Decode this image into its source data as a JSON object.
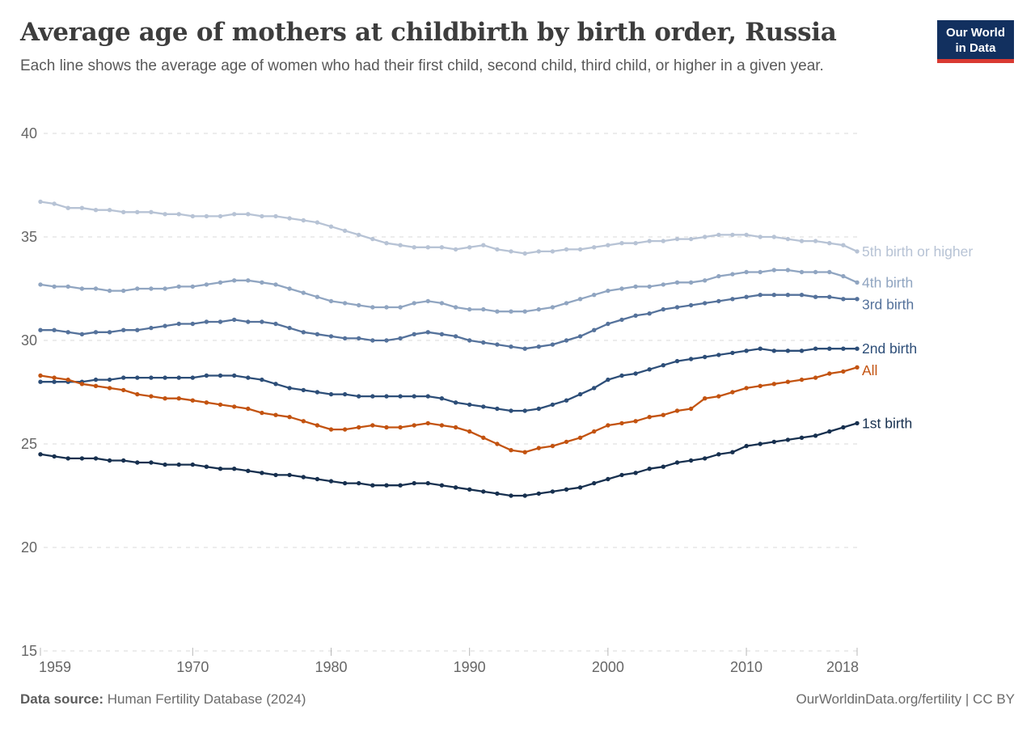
{
  "header": {
    "title": "Average age of mothers at childbirth by birth order, Russia",
    "subtitle": "Each line shows the average age of women who had their first child, second child, third child, or higher in a given year."
  },
  "logo": {
    "line1": "Our World",
    "line2": "in Data",
    "bg_color": "#12305f",
    "accent_color": "#d93a32"
  },
  "chart_data": {
    "type": "line",
    "title": "Average age of mothers at childbirth by birth order, Russia",
    "xlabel": "",
    "ylabel": "",
    "xlim": [
      1959,
      2018
    ],
    "ylim": [
      15,
      40
    ],
    "xticks": [
      1959,
      1970,
      1980,
      1990,
      2000,
      2010,
      2018
    ],
    "yticks": [
      15,
      20,
      25,
      30,
      35,
      40
    ],
    "grid": "horizontal-dashed",
    "grid_color": "#dadada",
    "tick_color": "#b8b8b8",
    "tick_label_color": "#666666",
    "legend_position": "right-end-labels",
    "x": [
      1959,
      1960,
      1961,
      1962,
      1963,
      1964,
      1965,
      1966,
      1967,
      1968,
      1969,
      1970,
      1971,
      1972,
      1973,
      1974,
      1975,
      1976,
      1977,
      1978,
      1979,
      1980,
      1981,
      1982,
      1983,
      1984,
      1985,
      1986,
      1987,
      1988,
      1989,
      1990,
      1991,
      1992,
      1993,
      1994,
      1995,
      1996,
      1997,
      1998,
      1999,
      2000,
      2001,
      2002,
      2003,
      2004,
      2005,
      2006,
      2007,
      2008,
      2009,
      2010,
      2011,
      2012,
      2013,
      2014,
      2015,
      2016,
      2017,
      2018
    ],
    "series": [
      {
        "name": "5th birth or higher",
        "color": "#b7c3d5",
        "values": [
          36.7,
          36.6,
          36.4,
          36.4,
          36.3,
          36.3,
          36.2,
          36.2,
          36.2,
          36.1,
          36.1,
          36.0,
          36.0,
          36.0,
          36.1,
          36.1,
          36.0,
          36.0,
          35.9,
          35.8,
          35.7,
          35.5,
          35.3,
          35.1,
          34.9,
          34.7,
          34.6,
          34.5,
          34.5,
          34.5,
          34.4,
          34.5,
          34.6,
          34.4,
          34.3,
          34.2,
          34.3,
          34.3,
          34.4,
          34.4,
          34.5,
          34.6,
          34.7,
          34.7,
          34.8,
          34.8,
          34.9,
          34.9,
          35.0,
          35.1,
          35.1,
          35.1,
          35.0,
          35.0,
          34.9,
          34.8,
          34.8,
          34.7,
          34.6,
          34.3
        ]
      },
      {
        "name": "4th birth",
        "color": "#90a5c1",
        "values": [
          32.7,
          32.6,
          32.6,
          32.5,
          32.5,
          32.4,
          32.4,
          32.5,
          32.5,
          32.5,
          32.6,
          32.6,
          32.7,
          32.8,
          32.9,
          32.9,
          32.8,
          32.7,
          32.5,
          32.3,
          32.1,
          31.9,
          31.8,
          31.7,
          31.6,
          31.6,
          31.6,
          31.8,
          31.9,
          31.8,
          31.6,
          31.5,
          31.5,
          31.4,
          31.4,
          31.4,
          31.5,
          31.6,
          31.8,
          32.0,
          32.2,
          32.4,
          32.5,
          32.6,
          32.6,
          32.7,
          32.8,
          32.8,
          32.9,
          33.1,
          33.2,
          33.3,
          33.3,
          33.4,
          33.4,
          33.3,
          33.3,
          33.3,
          33.1,
          32.8
        ]
      },
      {
        "name": "3rd birth",
        "color": "#55729b",
        "values": [
          30.5,
          30.5,
          30.4,
          30.3,
          30.4,
          30.4,
          30.5,
          30.5,
          30.6,
          30.7,
          30.8,
          30.8,
          30.9,
          30.9,
          31.0,
          30.9,
          30.9,
          30.8,
          30.6,
          30.4,
          30.3,
          30.2,
          30.1,
          30.1,
          30.0,
          30.0,
          30.1,
          30.3,
          30.4,
          30.3,
          30.2,
          30.0,
          29.9,
          29.8,
          29.7,
          29.6,
          29.7,
          29.8,
          30.0,
          30.2,
          30.5,
          30.8,
          31.0,
          31.2,
          31.3,
          31.5,
          31.6,
          31.7,
          31.8,
          31.9,
          32.0,
          32.1,
          32.2,
          32.2,
          32.2,
          32.2,
          32.1,
          32.1,
          32.0,
          32.0
        ]
      },
      {
        "name": "2nd birth",
        "color": "#2d4e78",
        "values": [
          28.0,
          28.0,
          28.0,
          28.0,
          28.1,
          28.1,
          28.2,
          28.2,
          28.2,
          28.2,
          28.2,
          28.2,
          28.3,
          28.3,
          28.3,
          28.2,
          28.1,
          27.9,
          27.7,
          27.6,
          27.5,
          27.4,
          27.4,
          27.3,
          27.3,
          27.3,
          27.3,
          27.3,
          27.3,
          27.2,
          27.0,
          26.9,
          26.8,
          26.7,
          26.6,
          26.6,
          26.7,
          26.9,
          27.1,
          27.4,
          27.7,
          28.1,
          28.3,
          28.4,
          28.6,
          28.8,
          29.0,
          29.1,
          29.2,
          29.3,
          29.4,
          29.5,
          29.6,
          29.5,
          29.5,
          29.5,
          29.6,
          29.6,
          29.6,
          29.6
        ]
      },
      {
        "name": "All",
        "color": "#c35310",
        "values": [
          28.3,
          28.2,
          28.1,
          27.9,
          27.8,
          27.7,
          27.6,
          27.4,
          27.3,
          27.2,
          27.2,
          27.1,
          27.0,
          26.9,
          26.8,
          26.7,
          26.5,
          26.4,
          26.3,
          26.1,
          25.9,
          25.7,
          25.7,
          25.8,
          25.9,
          25.8,
          25.8,
          25.9,
          26.0,
          25.9,
          25.8,
          25.6,
          25.3,
          25.0,
          24.7,
          24.6,
          24.8,
          24.9,
          25.1,
          25.3,
          25.6,
          25.9,
          26.0,
          26.1,
          26.3,
          26.4,
          26.6,
          26.7,
          27.2,
          27.3,
          27.5,
          27.7,
          27.8,
          27.9,
          28.0,
          28.1,
          28.2,
          28.4,
          28.5,
          28.7
        ]
      },
      {
        "name": "1st birth",
        "color": "#17304f",
        "values": [
          24.5,
          24.4,
          24.3,
          24.3,
          24.3,
          24.2,
          24.2,
          24.1,
          24.1,
          24.0,
          24.0,
          24.0,
          23.9,
          23.8,
          23.8,
          23.7,
          23.6,
          23.5,
          23.5,
          23.4,
          23.3,
          23.2,
          23.1,
          23.1,
          23.0,
          23.0,
          23.0,
          23.1,
          23.1,
          23.0,
          22.9,
          22.8,
          22.7,
          22.6,
          22.5,
          22.5,
          22.6,
          22.7,
          22.8,
          22.9,
          23.1,
          23.3,
          23.5,
          23.6,
          23.8,
          23.9,
          24.1,
          24.2,
          24.3,
          24.5,
          24.6,
          24.9,
          25.0,
          25.1,
          25.2,
          25.3,
          25.4,
          25.6,
          25.8,
          26.0
        ]
      }
    ]
  },
  "footer": {
    "source_label": "Data source:",
    "source_value": " Human Fertility Database (2024)",
    "citation": "OurWorldinData.org/fertility | CC BY"
  }
}
